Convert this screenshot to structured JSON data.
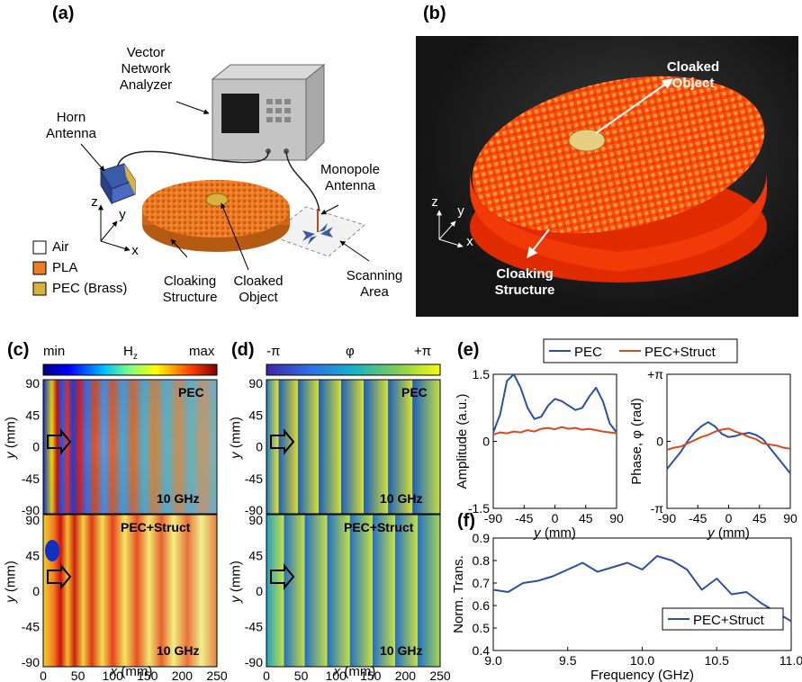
{
  "panel_a": {
    "label": "(a)",
    "vna": [
      "Vector",
      "Network",
      "Analyzer"
    ],
    "horn": [
      "Horn",
      "Antenna"
    ],
    "monopole": [
      "Monopole",
      "Antenna"
    ],
    "cloaking_structure": [
      "Cloaking",
      "Structure"
    ],
    "cloaked_object": [
      "Cloaked",
      "Object"
    ],
    "scanning_area": [
      "Scanning",
      "Area"
    ],
    "legend": [
      "Air",
      "PLA",
      "PEC (Brass)"
    ],
    "axes": {
      "z": "z",
      "y": "y",
      "x": "x"
    }
  },
  "panel_b": {
    "label": "(b)",
    "cloaked_object": [
      "Cloaked",
      "Object"
    ],
    "cloaking_structure": [
      "Cloaking",
      "Structure"
    ],
    "axes": {
      "z": "z",
      "y": "y",
      "x": "x"
    }
  },
  "panel_c": {
    "label": "(c)",
    "cbar_min": "min",
    "cbar_mid": "H",
    "cbar_sub": "z",
    "cbar_max": "max",
    "top_label": "PEC",
    "bottom_label": "PEC+Struct",
    "freq": "10 GHz",
    "ylabel_var": "y",
    "ylabel_unit": " (mm)",
    "xlabel_var": "x",
    "xlabel_unit": " (mm)"
  },
  "panel_d": {
    "label": "(d)",
    "cbar_min": "-π",
    "cbar_mid": "φ",
    "cbar_max": "+π",
    "top_label": "PEC",
    "bottom_label": "PEC+Struct",
    "freq": "10 GHz",
    "ylabel_var": "y",
    "ylabel_unit": " (mm)",
    "xlabel_var": "x",
    "xlabel_unit": " (mm)"
  },
  "panel_e": {
    "label": "(e)",
    "legend": [
      "PEC",
      "PEC+Struct"
    ]
  },
  "panel_f": {
    "label": "(f)",
    "legend": [
      "PEC+Struct"
    ]
  },
  "colors": {
    "pec": "#2c4fa8",
    "struct": "#d94a1a",
    "pla": "#ee7a22",
    "brass": "#d8b23a"
  },
  "chart_data": [
    {
      "type": "heatmap",
      "id": "c",
      "subplots": [
        "PEC",
        "PEC+Struct"
      ],
      "x_ticks": [
        "0",
        "50",
        "100",
        "150",
        "200",
        "250"
      ],
      "y_ticks": [
        "90",
        "45",
        "0",
        "-45",
        "-90"
      ],
      "xlim": [
        0,
        250
      ],
      "ylim": [
        -90,
        90
      ]
    },
    {
      "type": "heatmap",
      "id": "d",
      "subplots": [
        "PEC",
        "PEC+Struct"
      ],
      "x_ticks": [
        "0",
        "50",
        "100",
        "150",
        "200",
        "250"
      ],
      "y_ticks": [
        "90",
        "45",
        "0",
        "-45",
        "-90"
      ],
      "xlim": [
        0,
        250
      ],
      "ylim": [
        -90,
        90
      ]
    },
    {
      "type": "line",
      "id": "e1",
      "ylabel": "Amplitude (a.u.)",
      "xlabel_var": "y",
      "xlabel_unit": " (mm)",
      "xlim": [
        -90,
        90
      ],
      "ylim": [
        -1.5,
        1.5
      ],
      "x_ticks": [
        "-90",
        "-45",
        "0",
        "45",
        "90"
      ],
      "y_ticks": [
        "1.5",
        "0",
        "-1.5"
      ],
      "x": [
        -90,
        -80,
        -70,
        -60,
        -50,
        -40,
        -30,
        -20,
        -10,
        0,
        10,
        20,
        30,
        40,
        50,
        60,
        70,
        80,
        90
      ],
      "series": [
        {
          "name": "PEC",
          "values": [
            0.2,
            0.6,
            1.35,
            1.5,
            1.2,
            0.75,
            0.5,
            0.55,
            0.8,
            0.95,
            0.9,
            0.8,
            0.7,
            0.75,
            1.0,
            1.2,
            0.9,
            0.4,
            0.2
          ]
        },
        {
          "name": "PEC+Struct",
          "values": [
            0.15,
            0.2,
            0.18,
            0.22,
            0.2,
            0.25,
            0.22,
            0.28,
            0.3,
            0.27,
            0.32,
            0.28,
            0.3,
            0.26,
            0.28,
            0.25,
            0.22,
            0.2,
            0.18
          ]
        }
      ]
    },
    {
      "type": "line",
      "id": "e2",
      "ylabel": "Phase, φ (rad)",
      "xlabel_var": "y",
      "xlabel_unit": " (mm)",
      "xlim": [
        -90,
        90
      ],
      "ylim": [
        -3.1416,
        3.1416
      ],
      "x_ticks": [
        "-90",
        "-45",
        "0",
        "45",
        "90"
      ],
      "y_ticks": [
        "+π",
        "0",
        "-π"
      ],
      "x": [
        -90,
        -80,
        -70,
        -60,
        -50,
        -40,
        -30,
        -20,
        -10,
        0,
        10,
        20,
        30,
        40,
        50,
        60,
        70,
        80,
        90
      ],
      "series": [
        {
          "name": "PEC",
          "values": [
            -1.3,
            -0.9,
            -0.5,
            0.0,
            0.4,
            0.7,
            0.9,
            0.7,
            0.35,
            0.2,
            0.25,
            0.35,
            0.4,
            0.3,
            0.1,
            -0.3,
            -0.7,
            -1.1,
            -1.5
          ]
        },
        {
          "name": "PEC+Struct",
          "values": [
            -0.4,
            -0.3,
            -0.25,
            -0.1,
            0.05,
            0.2,
            0.3,
            0.45,
            0.55,
            0.6,
            0.45,
            0.35,
            0.2,
            0.1,
            -0.1,
            -0.15,
            -0.2,
            -0.3,
            -0.35
          ]
        }
      ]
    },
    {
      "type": "line",
      "id": "f",
      "ylabel": "Norm. Trans.",
      "xlabel": "Frequency (GHz)",
      "xlim": [
        9.0,
        11.0
      ],
      "ylim": [
        0.4,
        0.9
      ],
      "x_ticks": [
        "9.0",
        "9.5",
        "10.0",
        "10.5",
        "11.0"
      ],
      "y_ticks": [
        "0.9",
        "0.8",
        "0.7",
        "0.6",
        "0.5",
        "0.4"
      ],
      "x": [
        9.0,
        9.1,
        9.2,
        9.3,
        9.4,
        9.5,
        9.6,
        9.7,
        9.8,
        9.9,
        10.0,
        10.1,
        10.2,
        10.3,
        10.4,
        10.5,
        10.6,
        10.7,
        10.8,
        10.9,
        11.0
      ],
      "series": [
        {
          "name": "PEC+Struct",
          "values": [
            0.67,
            0.66,
            0.7,
            0.71,
            0.73,
            0.76,
            0.79,
            0.75,
            0.77,
            0.79,
            0.76,
            0.82,
            0.8,
            0.76,
            0.67,
            0.72,
            0.65,
            0.66,
            0.61,
            0.57,
            0.53
          ]
        }
      ]
    }
  ]
}
